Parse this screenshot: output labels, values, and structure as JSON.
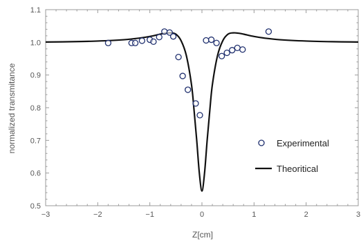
{
  "chart_data": {
    "type": "scatter",
    "xlabel": "Z[cm]",
    "ylabel": "normalized transmitance",
    "xlim": [
      -3,
      3
    ],
    "ylim": [
      0.5,
      1.1
    ],
    "x_ticks": [
      -3,
      -2,
      -1,
      0,
      1,
      2,
      3
    ],
    "x_tick_labels": [
      "−3",
      "−2",
      "−1",
      "0",
      "1",
      "2",
      "3"
    ],
    "y_ticks": [
      0.5,
      0.6,
      0.7,
      0.8,
      0.9,
      1.0,
      1.1
    ],
    "y_tick_labels": [
      "0.5",
      "0.6",
      "0.7",
      "0.8",
      "0.9",
      "1.0",
      "1.1"
    ],
    "legend_position": "right",
    "series": [
      {
        "name": "Experimental",
        "kind": "scatter",
        "color": "#1f2f6e",
        "x": [
          -1.8,
          -1.35,
          -1.28,
          -1.15,
          -1.0,
          -0.93,
          -0.82,
          -0.72,
          -0.62,
          -0.55,
          -0.45,
          -0.37,
          -0.27,
          -0.12,
          -0.04,
          0.08,
          0.18,
          0.28,
          0.38,
          0.48,
          0.58,
          0.68,
          0.78,
          1.28
        ],
        "y": [
          0.998,
          0.998,
          0.998,
          1.005,
          1.008,
          1.002,
          1.016,
          1.033,
          1.03,
          1.018,
          0.955,
          0.897,
          0.855,
          0.813,
          0.777,
          1.006,
          1.008,
          0.998,
          0.958,
          0.968,
          0.976,
          0.983,
          0.978,
          1.033
        ]
      },
      {
        "name": "Theoritical",
        "kind": "line",
        "color": "#111111",
        "x": [
          -3,
          -2.5,
          -2,
          -1.5,
          -1.2,
          -1,
          -0.8,
          -0.7,
          -0.6,
          -0.5,
          -0.4,
          -0.3,
          -0.2,
          -0.15,
          -0.1,
          -0.05,
          0,
          0.05,
          0.1,
          0.15,
          0.2,
          0.3,
          0.4,
          0.5,
          0.6,
          0.7,
          0.8,
          1,
          1.2,
          1.5,
          2,
          2.5,
          3
        ],
        "y": [
          1.001,
          1.002,
          1.004,
          1.008,
          1.013,
          1.018,
          1.025,
          1.028,
          1.029,
          1.025,
          1.005,
          0.96,
          0.87,
          0.79,
          0.7,
          0.6,
          0.545,
          0.6,
          0.7,
          0.79,
          0.87,
          0.96,
          1.005,
          1.025,
          1.029,
          1.028,
          1.025,
          1.018,
          1.013,
          1.008,
          1.004,
          1.002,
          1.001
        ]
      }
    ]
  }
}
